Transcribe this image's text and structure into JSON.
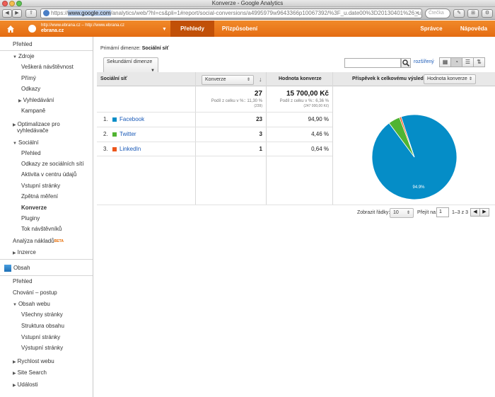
{
  "window": {
    "title": "Konverze - Google Analytics"
  },
  "browser": {
    "url_scheme": "https://",
    "url_domain": "www.google.com",
    "url_path": "/analytics/web/?hl=cs&pli=1#report/social-conversions/a4995979w9643366p10067392/%3F_u.date00%3D20130401%26_u.d",
    "search_placeholder": "Čtečka"
  },
  "header": {
    "account_line1": "http://www.ebrana.cz – http://www.ebrana.cz",
    "account_line2": "ebrana.cz",
    "tabs": [
      {
        "label": "Přehledy"
      },
      {
        "label": "Přizpůsobení"
      },
      {
        "label": "Správce"
      },
      {
        "label": "Nápověda"
      }
    ]
  },
  "sidebar": {
    "items": [
      {
        "label": "Přehled"
      },
      {
        "label": "Zdroje"
      },
      {
        "label": "Veškerá návštěvnost"
      },
      {
        "label": "Přímý"
      },
      {
        "label": "Odkazy"
      },
      {
        "label": "Vyhledávání"
      },
      {
        "label": "Kampaně"
      },
      {
        "label": "Optimalizace pro"
      },
      {
        "label": "vyhledávače"
      },
      {
        "label": "Sociální"
      },
      {
        "label": "Přehled"
      },
      {
        "label": "Odkazy ze sociálních sítí"
      },
      {
        "label": "Aktivita v centru údajů"
      },
      {
        "label": "Vstupní stránky"
      },
      {
        "label": "Zpětná měření"
      },
      {
        "label": "Konverze"
      },
      {
        "label": "Pluginy"
      },
      {
        "label": "Tok návštěvníků"
      },
      {
        "label": "Analýza nákladů"
      },
      {
        "label": "Inzerce"
      },
      {
        "label": "Obsah"
      },
      {
        "label": "Přehled"
      },
      {
        "label": "Chování – postup"
      },
      {
        "label": "Obsah webu"
      },
      {
        "label": "Všechny stránky"
      },
      {
        "label": "Struktura obsahu"
      },
      {
        "label": "Vstupní stránky"
      },
      {
        "label": "Výstupní stránky"
      },
      {
        "label": "Rychlost webu"
      },
      {
        "label": "Site Search"
      },
      {
        "label": "Události"
      }
    ],
    "beta": "BETA"
  },
  "report": {
    "primary_dimension_label": "Primární dimenze:",
    "primary_dimension_value": "Sociální síť",
    "secondary_dimension": "Sekundární dimenze",
    "advanced_link": "rozšířený",
    "columns": {
      "dimension": "Sociální síť",
      "metric_select": "Konverze",
      "value": "Hodnota konverze",
      "contribution_label": "Příspěvek k celkovému výsledku:",
      "contribution_select": "Hodnota konverze"
    },
    "totals": {
      "conversions": "27",
      "conversions_pct": "Podíl z celku v %:: 11,30 %",
      "conversions_total": "(239)",
      "value": "15 700,00 Kč",
      "value_pct": "Podíl z celku v %:: 6,36 %",
      "value_total": "(247 000,00 Kč)"
    },
    "rows": [
      {
        "idx": "1.",
        "label": "Facebook",
        "conversions": "23",
        "share": "94,90 %",
        "color": "#058dc7"
      },
      {
        "idx": "2.",
        "label": "Twitter",
        "conversions": "3",
        "share": "4,46 %",
        "color": "#50b432"
      },
      {
        "idx": "3.",
        "label": "LinkedIn",
        "conversions": "1",
        "share": "0,64 %",
        "color": "#ed561b"
      }
    ],
    "pager": {
      "show_rows_label": "Zobrazit řádky:",
      "show_rows_value": "10",
      "goto_label": "Přejít na:",
      "goto_value": "1",
      "range": "1–3 z 3"
    }
  },
  "chart_data": {
    "type": "pie",
    "categories": [
      "Facebook",
      "Twitter",
      "LinkedIn"
    ],
    "values": [
      94.9,
      4.46,
      0.64
    ],
    "colors": [
      "#058dc7",
      "#50b432",
      "#ed561b"
    ],
    "data_labels": [
      "94.9%"
    ]
  }
}
